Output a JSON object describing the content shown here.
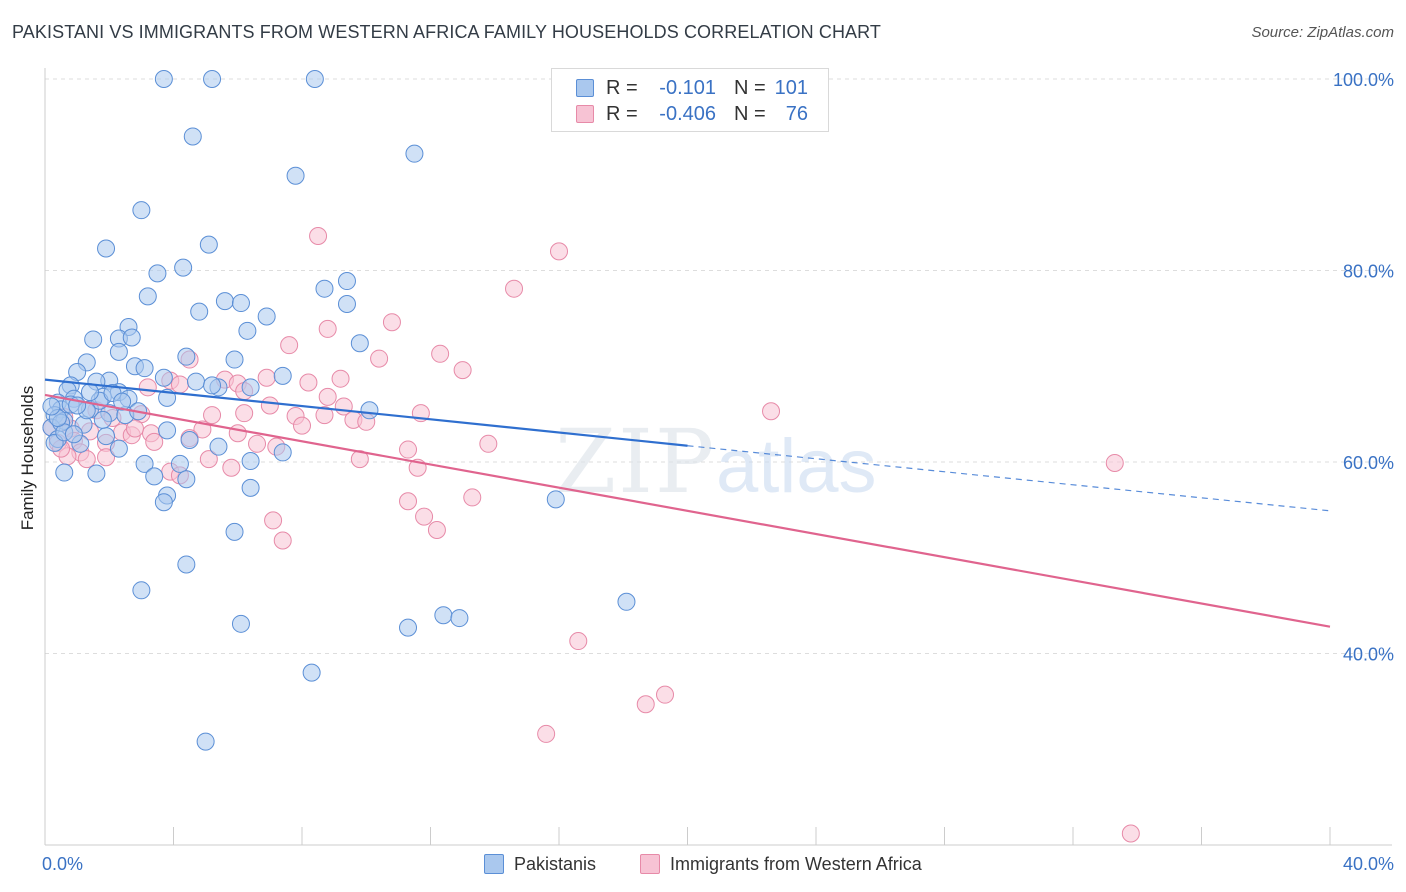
{
  "title": "PAKISTANI VS IMMIGRANTS FROM WESTERN AFRICA FAMILY HOUSEHOLDS CORRELATION CHART",
  "source": "Source: ZipAtlas.com",
  "watermark": {
    "zip": "ZIP",
    "atlas": "atlas"
  },
  "legend_top": {
    "rows": [
      {
        "r_label": "R =",
        "r_value": "-0.101",
        "n_label": "N =",
        "n_value": "101"
      },
      {
        "r_label": "R =",
        "r_value": "-0.406",
        "n_label": "N =",
        "n_value": "76"
      }
    ]
  },
  "colors": {
    "blue_fill": "#aac8ee",
    "blue_edge": "#5b8fd6",
    "blue_line": "#2f6fcf",
    "pink_fill": "#f7c3d4",
    "pink_edge": "#e78aa8",
    "pink_line": "#e0648e",
    "tick_label": "#3a72c4",
    "grid": "#dddddd"
  },
  "chart_data": {
    "type": "scatter",
    "title": "PAKISTANI VS IMMIGRANTS FROM WESTERN AFRICA FAMILY HOUSEHOLDS CORRELATION CHART",
    "xlabel": "",
    "ylabel": "Family Households",
    "xlim": [
      0,
      40
    ],
    "ylim": [
      20,
      100
    ],
    "x_tick_labels": [
      "0.0%",
      "40.0%"
    ],
    "y_ticks": [
      40,
      60,
      80,
      100
    ],
    "y_tick_labels": [
      "40.0%",
      "60.0%",
      "80.0%",
      "100.0%"
    ],
    "grid": "horizontal dashed",
    "legend_position": "top-center and bottom",
    "series": [
      {
        "name": "Pakistanis",
        "color": "#aac8ee",
        "trend": {
          "x0": 0,
          "y0": 68.6,
          "x1": 20,
          "y1": 61.7,
          "dashed_to_x": 40,
          "dashed_to_y": 54.9
        },
        "points": [
          [
            3.7,
            100
          ],
          [
            5.2,
            100
          ],
          [
            8.4,
            100
          ],
          [
            4.6,
            94
          ],
          [
            11.5,
            92.2
          ],
          [
            7.8,
            89.9
          ],
          [
            3.0,
            86.3
          ],
          [
            1.9,
            82.3
          ],
          [
            5.1,
            82.7
          ],
          [
            3.5,
            79.7
          ],
          [
            4.3,
            80.3
          ],
          [
            8.7,
            78.1
          ],
          [
            9.4,
            78.9
          ],
          [
            3.2,
            77.3
          ],
          [
            5.6,
            76.8
          ],
          [
            6.1,
            76.6
          ],
          [
            4.8,
            75.7
          ],
          [
            6.9,
            75.2
          ],
          [
            9.4,
            76.5
          ],
          [
            2.6,
            74.1
          ],
          [
            6.3,
            73.7
          ],
          [
            1.5,
            72.8
          ],
          [
            2.3,
            72.9
          ],
          [
            2.7,
            73
          ],
          [
            9.8,
            72.4
          ],
          [
            2.3,
            71.5
          ],
          [
            4.4,
            71
          ],
          [
            5.9,
            70.7
          ],
          [
            1.3,
            70.4
          ],
          [
            2.8,
            70
          ],
          [
            1.0,
            69.4
          ],
          [
            3.1,
            69.8
          ],
          [
            7.4,
            69
          ],
          [
            3.7,
            68.8
          ],
          [
            2.0,
            68.5
          ],
          [
            0.8,
            68
          ],
          [
            1.6,
            68.4
          ],
          [
            4.7,
            68.4
          ],
          [
            0.7,
            67.5
          ],
          [
            2.3,
            67.3
          ],
          [
            3.8,
            66.7
          ],
          [
            5.4,
            67.8
          ],
          [
            6.4,
            67.8
          ],
          [
            0.4,
            66.2
          ],
          [
            0.9,
            66.6
          ],
          [
            1.8,
            66.8
          ],
          [
            2.6,
            66.6
          ],
          [
            0.5,
            65.5
          ],
          [
            1.4,
            65.5
          ],
          [
            2.0,
            65.1
          ],
          [
            0.3,
            64.9
          ],
          [
            0.6,
            64.3
          ],
          [
            1.2,
            63.9
          ],
          [
            2.5,
            64.9
          ],
          [
            10.1,
            65.4
          ],
          [
            0.2,
            63.6
          ],
          [
            0.4,
            62.4
          ],
          [
            1.9,
            62.7
          ],
          [
            3.8,
            63.3
          ],
          [
            0.3,
            62
          ],
          [
            1.1,
            61.9
          ],
          [
            2.3,
            61.4
          ],
          [
            4.5,
            62.3
          ],
          [
            7.4,
            61
          ],
          [
            5.4,
            61.6
          ],
          [
            3.1,
            59.8
          ],
          [
            4.2,
            59.8
          ],
          [
            6.4,
            60.1
          ],
          [
            0.6,
            58.9
          ],
          [
            1.6,
            58.8
          ],
          [
            3.4,
            58.5
          ],
          [
            4.4,
            58.2
          ],
          [
            6.4,
            57.3
          ],
          [
            3.8,
            56.5
          ],
          [
            3.7,
            55.8
          ],
          [
            15.9,
            56.1
          ],
          [
            5.9,
            52.7
          ],
          [
            4.4,
            49.3
          ],
          [
            3.0,
            46.6
          ],
          [
            18.1,
            45.4
          ],
          [
            6.1,
            43.1
          ],
          [
            12.4,
            44
          ],
          [
            12.9,
            43.7
          ],
          [
            11.3,
            42.7
          ],
          [
            8.3,
            38
          ],
          [
            5.0,
            30.8
          ],
          [
            0.5,
            64.1
          ],
          [
            0.8,
            66
          ],
          [
            1.7,
            66.4
          ],
          [
            2.1,
            67.2
          ],
          [
            1.3,
            65.4
          ],
          [
            0.6,
            63.1
          ],
          [
            2.9,
            65.3
          ],
          [
            1.0,
            65.9
          ],
          [
            1.4,
            67.3
          ],
          [
            0.4,
            64.6
          ],
          [
            2.4,
            66.3
          ],
          [
            5.2,
            68
          ],
          [
            0.9,
            62.9
          ],
          [
            0.2,
            65.8
          ],
          [
            1.8,
            64.4
          ]
        ]
      },
      {
        "name": "Immigrants from Western Africa",
        "color": "#f7c3d4",
        "trend": {
          "x0": 0,
          "y0": 67.0,
          "x1": 40,
          "y1": 42.8
        },
        "points": [
          [
            8.5,
            83.6
          ],
          [
            16.0,
            82
          ],
          [
            14.6,
            78.1
          ],
          [
            10.8,
            74.6
          ],
          [
            8.8,
            73.9
          ],
          [
            7.6,
            72.2
          ],
          [
            12.3,
            71.3
          ],
          [
            10.4,
            70.8
          ],
          [
            4.5,
            70.7
          ],
          [
            13.0,
            69.6
          ],
          [
            5.6,
            68.6
          ],
          [
            6.9,
            68.8
          ],
          [
            9.2,
            68.7
          ],
          [
            3.9,
            68.5
          ],
          [
            4.2,
            68.1
          ],
          [
            6.0,
            68.2
          ],
          [
            6.2,
            67.4
          ],
          [
            8.2,
            68.3
          ],
          [
            8.8,
            66.8
          ],
          [
            3.2,
            67.8
          ],
          [
            7.0,
            65.9
          ],
          [
            9.3,
            65.8
          ],
          [
            11.7,
            65.1
          ],
          [
            22.6,
            65.3
          ],
          [
            3.0,
            65
          ],
          [
            5.2,
            64.9
          ],
          [
            6.2,
            65.1
          ],
          [
            7.8,
            64.8
          ],
          [
            8.7,
            64.9
          ],
          [
            9.6,
            64.4
          ],
          [
            10.0,
            64.2
          ],
          [
            8.0,
            63.8
          ],
          [
            4.9,
            63.4
          ],
          [
            0.8,
            63.5
          ],
          [
            1.4,
            63.2
          ],
          [
            2.4,
            63.1
          ],
          [
            3.3,
            63
          ],
          [
            4.5,
            62.5
          ],
          [
            2.7,
            62.8
          ],
          [
            6.0,
            63
          ],
          [
            0.9,
            62.2
          ],
          [
            0.4,
            62
          ],
          [
            1.9,
            62
          ],
          [
            3.4,
            62.1
          ],
          [
            6.6,
            61.9
          ],
          [
            7.2,
            61.6
          ],
          [
            13.8,
            61.9
          ],
          [
            1.1,
            61
          ],
          [
            0.7,
            60.6
          ],
          [
            1.9,
            60.5
          ],
          [
            5.1,
            60.3
          ],
          [
            9.8,
            60.3
          ],
          [
            11.3,
            61.3
          ],
          [
            11.6,
            59.4
          ],
          [
            33.3,
            59.9
          ],
          [
            5.8,
            59.4
          ],
          [
            3.9,
            59
          ],
          [
            4.2,
            58.6
          ],
          [
            0.6,
            64.7
          ],
          [
            1.6,
            65.4
          ],
          [
            2.8,
            63.5
          ],
          [
            11.3,
            55.9
          ],
          [
            13.3,
            56.3
          ],
          [
            11.8,
            54.3
          ],
          [
            7.1,
            53.9
          ],
          [
            12.2,
            52.9
          ],
          [
            7.4,
            51.8
          ],
          [
            16.6,
            41.3
          ],
          [
            19.3,
            35.7
          ],
          [
            18.7,
            34.7
          ],
          [
            15.6,
            31.6
          ],
          [
            33.8,
            21.2
          ],
          [
            0.2,
            63.6
          ],
          [
            0.5,
            61.4
          ],
          [
            1.3,
            60.3
          ],
          [
            2.1,
            64.6
          ]
        ]
      }
    ]
  },
  "axes": {
    "ylabel": "Family Households",
    "x_left_label": "0.0%",
    "x_right_label": "40.0%",
    "y_tick_labels": [
      "100.0%",
      "80.0%",
      "60.0%",
      "40.0%"
    ]
  },
  "legend_bottom": {
    "items": [
      "Pakistanis",
      "Immigrants from Western Africa"
    ]
  }
}
